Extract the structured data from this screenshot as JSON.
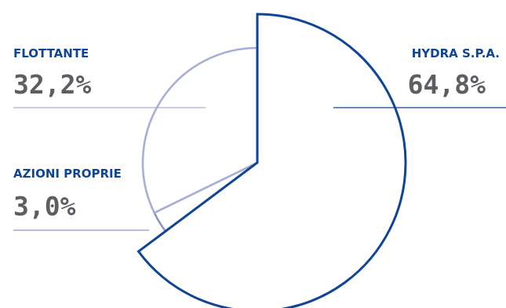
{
  "chart_data": {
    "type": "pie",
    "title": "",
    "slices": [
      {
        "label": "HYDRA S.P.A.",
        "value_label": "64,8%",
        "value": 64.8,
        "color": "#0f4595",
        "emphasized": true
      },
      {
        "label": "AZIONI PROPRIE",
        "value_label": "3,0%",
        "value": 3.0,
        "color": "#8f94c6",
        "emphasized": false
      },
      {
        "label": "FLOTTANTE",
        "value_label": "32,2%",
        "value": 32.2,
        "color": "#a9aed8",
        "emphasized": false
      }
    ],
    "label_color": "#0f4595",
    "value_color": "#5e5e62"
  }
}
